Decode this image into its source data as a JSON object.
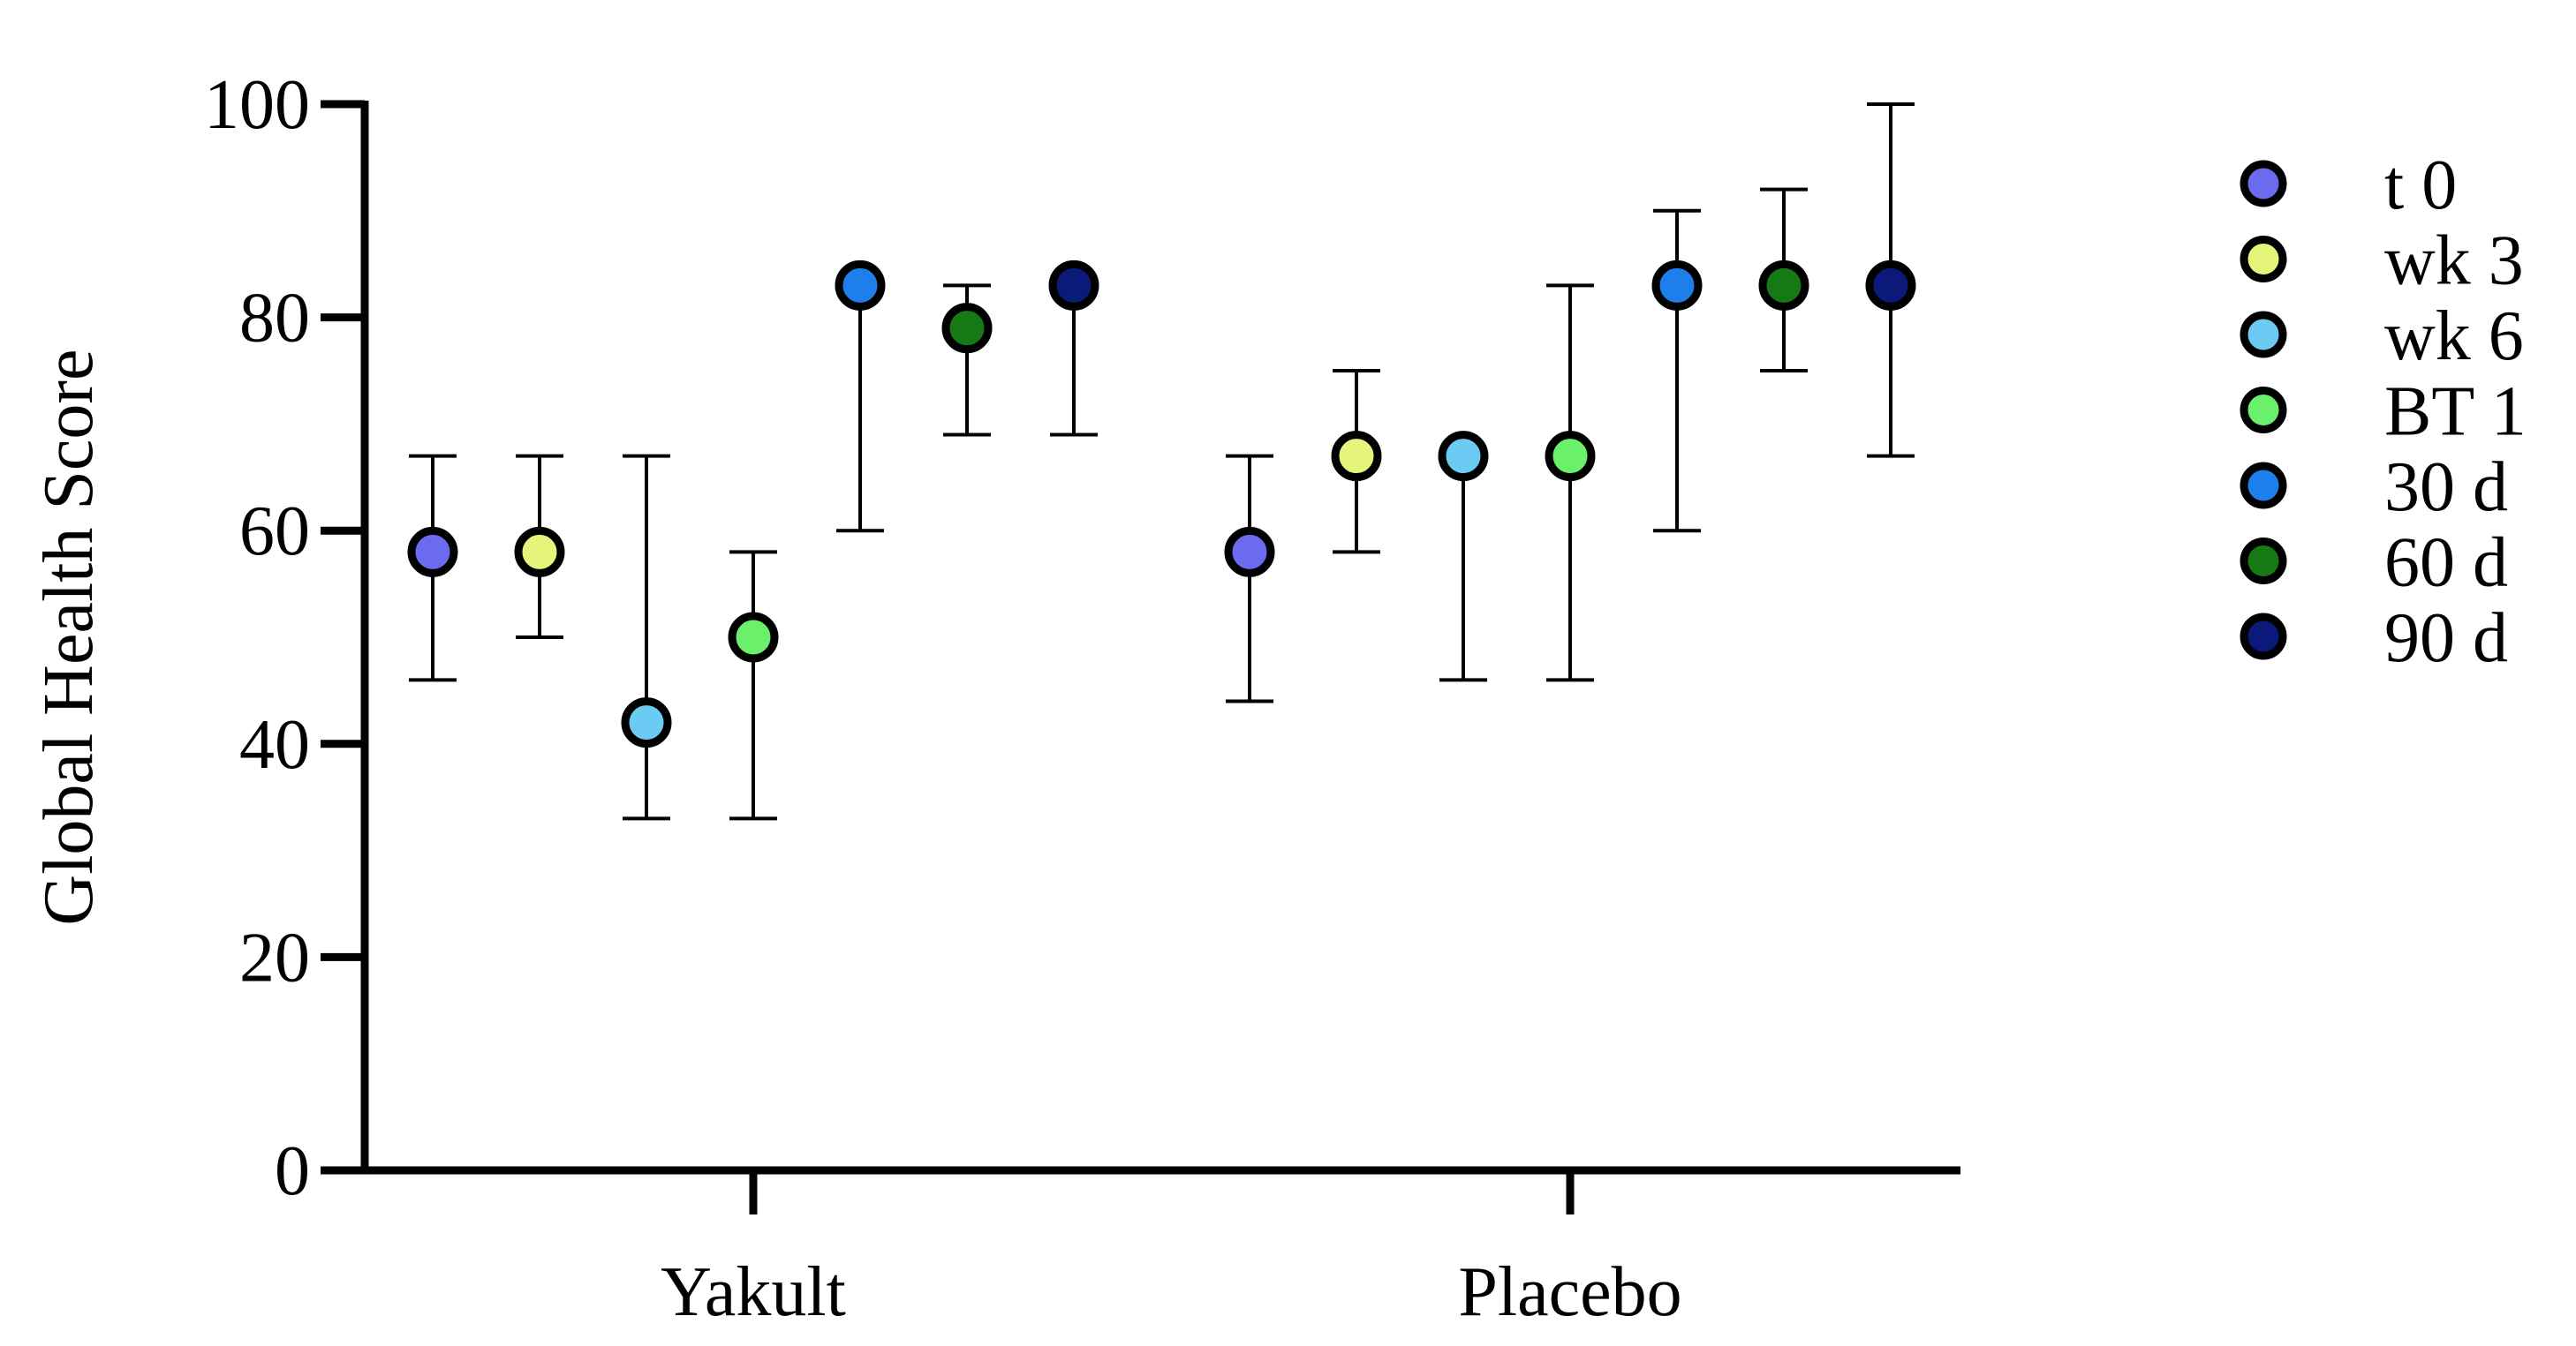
{
  "chart_data": {
    "type": "scatter",
    "ylabel": "Global Health Score",
    "xlabel": "",
    "ylim": [
      0,
      100
    ],
    "yticks": [
      0,
      20,
      40,
      60,
      80,
      100
    ],
    "categories": [
      "Yakult",
      "Placebo"
    ],
    "legend_position": "right",
    "error_bars": true,
    "series": [
      {
        "name": "t 0",
        "color": "#6b6bf0",
        "values": [
          58,
          58
        ],
        "lower": [
          46,
          44
        ],
        "upper": [
          67,
          67
        ]
      },
      {
        "name": "wk 3",
        "color": "#e4f57a",
        "values": [
          58,
          67
        ],
        "lower": [
          50,
          58
        ],
        "upper": [
          67,
          75
        ]
      },
      {
        "name": "wk 6",
        "color": "#6ccbf2",
        "values": [
          42,
          67
        ],
        "lower": [
          33,
          46
        ],
        "upper": [
          67,
          67
        ]
      },
      {
        "name": "BT 1",
        "color": "#6af06a",
        "values": [
          50,
          67
        ],
        "lower": [
          33,
          46
        ],
        "upper": [
          58,
          83
        ]
      },
      {
        "name": "30 d",
        "color": "#1e7fec",
        "values": [
          83,
          83
        ],
        "lower": [
          60,
          60
        ],
        "upper": [
          83,
          90
        ]
      },
      {
        "name": "60 d",
        "color": "#157a15",
        "values": [
          79,
          83
        ],
        "lower": [
          69,
          75
        ],
        "upper": [
          83,
          92
        ]
      },
      {
        "name": "90 d",
        "color": "#0b1a7a",
        "values": [
          83,
          83
        ],
        "lower": [
          69,
          67
        ],
        "upper": [
          83,
          100
        ]
      }
    ]
  }
}
